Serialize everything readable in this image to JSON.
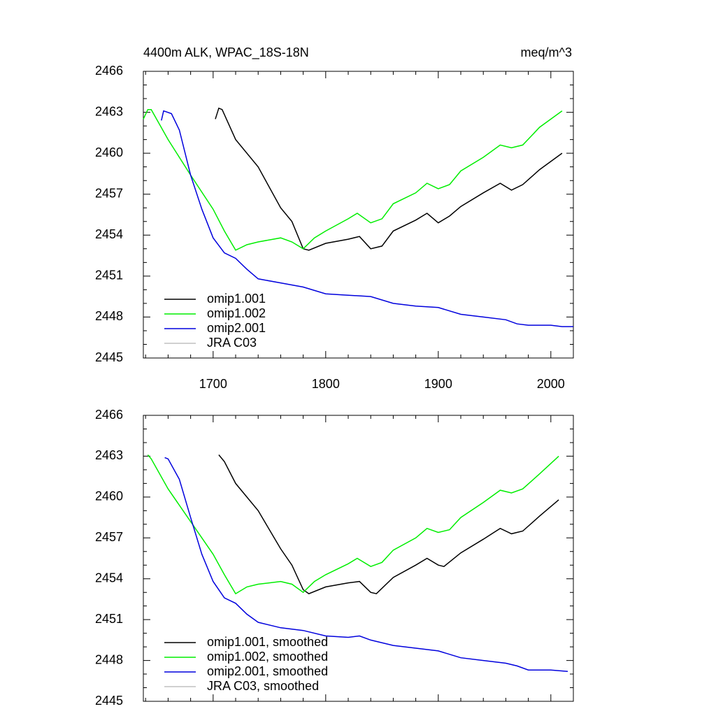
{
  "chart_data": [
    {
      "type": "line",
      "title": "4400m ALK, WPAC_18S-18N",
      "subtitle": "meq/m^3",
      "xlim": [
        1638,
        2020
      ],
      "xticks": [
        1700,
        1800,
        1900,
        2000
      ],
      "ylim": [
        2445,
        2466
      ],
      "yticks": [
        2445,
        2448,
        2451,
        2454,
        2457,
        2460,
        2463,
        2466
      ],
      "legend": "lower left",
      "series": [
        {
          "name": "omip1.001",
          "color": "#000000",
          "x": [
            1702,
            1705,
            1708,
            1720,
            1740,
            1760,
            1770,
            1780,
            1785,
            1800,
            1820,
            1830,
            1840,
            1850,
            1860,
            1880,
            1890,
            1900,
            1910,
            1920,
            1940,
            1955,
            1965,
            1975,
            1990,
            2010
          ],
          "values": [
            2462.5,
            2463.3,
            2463.2,
            2461,
            2459,
            2456,
            2455,
            2453,
            2452.9,
            2453.4,
            2453.7,
            2453.9,
            2453,
            2453.2,
            2454.3,
            2455.1,
            2455.6,
            2454.9,
            2455.4,
            2456.1,
            2457.1,
            2457.8,
            2457.3,
            2457.7,
            2458.8,
            2460
          ]
        },
        {
          "name": "omip1.002",
          "color": "#00ee00",
          "x": [
            1638,
            1642,
            1645,
            1660,
            1680,
            1700,
            1710,
            1720,
            1730,
            1740,
            1760,
            1770,
            1780,
            1790,
            1800,
            1820,
            1828,
            1840,
            1850,
            1860,
            1880,
            1890,
            1900,
            1910,
            1920,
            1940,
            1955,
            1965,
            1975,
            1990,
            2010
          ],
          "values": [
            2462.5,
            2463.2,
            2463.2,
            2461,
            2458.4,
            2455.9,
            2454.3,
            2452.9,
            2453.3,
            2453.5,
            2453.8,
            2453.5,
            2453,
            2453.8,
            2454.3,
            2455.2,
            2455.6,
            2454.9,
            2455.2,
            2456.3,
            2457.1,
            2457.8,
            2457.4,
            2457.7,
            2458.7,
            2459.7,
            2460.6,
            2460.4,
            2460.6,
            2461.9,
            2463.1
          ]
        },
        {
          "name": "omip2.001",
          "color": "#0000dd",
          "x": [
            1654,
            1656,
            1663,
            1670,
            1680,
            1690,
            1700,
            1710,
            1720,
            1730,
            1740,
            1760,
            1780,
            1800,
            1820,
            1840,
            1860,
            1880,
            1900,
            1920,
            1940,
            1960,
            1970,
            1980,
            2000,
            2010,
            2020
          ],
          "values": [
            2462.4,
            2463.1,
            2462.9,
            2461.7,
            2458.4,
            2455.9,
            2453.8,
            2452.7,
            2452.3,
            2451.5,
            2450.8,
            2450.5,
            2450.2,
            2449.7,
            2449.6,
            2449.5,
            2449,
            2448.8,
            2448.7,
            2448.2,
            2448,
            2447.8,
            2447.5,
            2447.4,
            2447.4,
            2447.3,
            2447.3
          ]
        },
        {
          "name": "JRA C03",
          "color": "#c0c0c0",
          "x": [],
          "values": []
        }
      ]
    },
    {
      "type": "line",
      "xlim": [
        1638,
        2020
      ],
      "xticks": [
        1700,
        1800,
        1900,
        2000
      ],
      "ylim": [
        2445,
        2466
      ],
      "yticks": [
        2445,
        2448,
        2451,
        2454,
        2457,
        2460,
        2463,
        2466
      ],
      "legend": "lower left",
      "series": [
        {
          "name": "omip1.001, smoothed",
          "color": "#000000",
          "x": [
            1705,
            1710,
            1720,
            1740,
            1760,
            1770,
            1780,
            1785,
            1800,
            1820,
            1830,
            1840,
            1845,
            1860,
            1880,
            1890,
            1900,
            1905,
            1920,
            1940,
            1955,
            1965,
            1975,
            1990,
            2007
          ],
          "values": [
            2463.1,
            2462.6,
            2461,
            2459,
            2456.2,
            2455,
            2453.2,
            2452.9,
            2453.4,
            2453.7,
            2453.8,
            2453,
            2452.9,
            2454.1,
            2455,
            2455.5,
            2455,
            2454.9,
            2455.9,
            2456.9,
            2457.7,
            2457.3,
            2457.5,
            2458.6,
            2459.8
          ]
        },
        {
          "name": "omip1.002, smoothed",
          "color": "#00ee00",
          "x": [
            1642,
            1645,
            1660,
            1680,
            1700,
            1710,
            1720,
            1730,
            1740,
            1760,
            1770,
            1780,
            1790,
            1800,
            1820,
            1828,
            1840,
            1850,
            1860,
            1880,
            1890,
            1900,
            1910,
            1920,
            1940,
            1955,
            1965,
            1975,
            1990,
            2007
          ],
          "values": [
            2463.1,
            2462.8,
            2460.6,
            2458.2,
            2455.8,
            2454.3,
            2452.9,
            2453.4,
            2453.6,
            2453.8,
            2453.6,
            2453,
            2453.8,
            2454.3,
            2455.1,
            2455.5,
            2454.9,
            2455.2,
            2456.1,
            2457,
            2457.7,
            2457.4,
            2457.6,
            2458.5,
            2459.6,
            2460.5,
            2460.3,
            2460.6,
            2461.7,
            2463
          ]
        },
        {
          "name": "omip2.001, smoothed",
          "color": "#0000dd",
          "x": [
            1657,
            1660,
            1670,
            1680,
            1690,
            1700,
            1710,
            1720,
            1730,
            1740,
            1760,
            1780,
            1800,
            1820,
            1830,
            1840,
            1860,
            1880,
            1900,
            1920,
            1940,
            1960,
            1970,
            1980,
            2000,
            2015
          ],
          "values": [
            2462.9,
            2462.8,
            2461.3,
            2458.5,
            2455.8,
            2453.8,
            2452.6,
            2452.2,
            2451.4,
            2450.8,
            2450.4,
            2450.2,
            2449.8,
            2449.7,
            2449.8,
            2449.5,
            2449.1,
            2448.9,
            2448.7,
            2448.2,
            2448,
            2447.8,
            2447.6,
            2447.3,
            2447.3,
            2447.2
          ]
        },
        {
          "name": "JRA C03, smoothed",
          "color": "#c0c0c0",
          "x": [],
          "values": []
        }
      ]
    }
  ]
}
